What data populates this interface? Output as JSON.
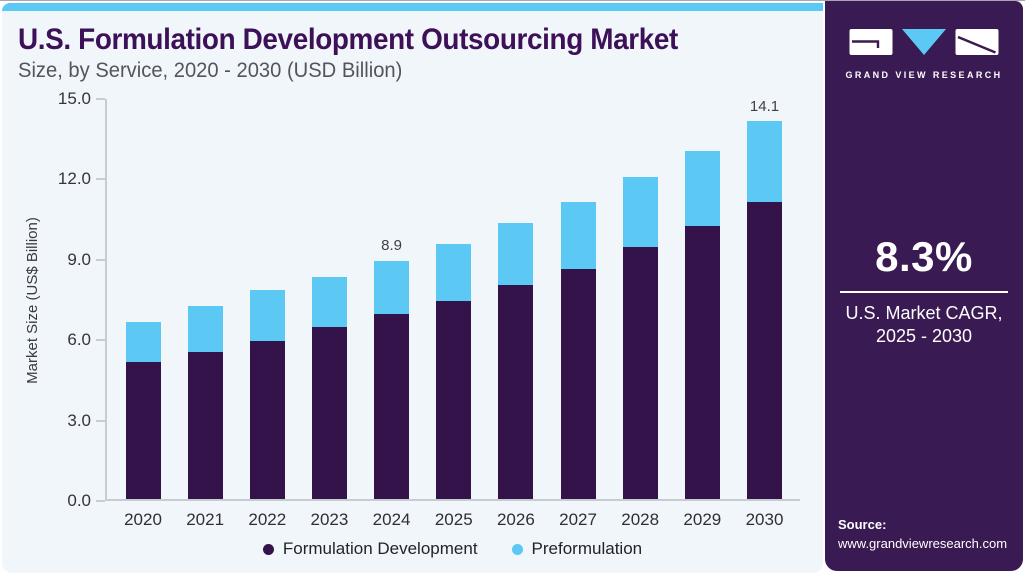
{
  "page": {
    "accent_color": "#5bc9f4",
    "card_bg": "#f1f6fa"
  },
  "header": {
    "title": "U.S. Formulation Development Outsourcing Market",
    "subtitle": "Size, by Service, 2020 - 2030 (USD Billion)",
    "title_color": "#3d1158"
  },
  "chart_data": {
    "type": "bar",
    "stacked": true,
    "title": "U.S. Formulation Development Outsourcing Market Size, by Service, 2020 - 2030 (USD Billion)",
    "categories": [
      "2020",
      "2021",
      "2022",
      "2023",
      "2024",
      "2025",
      "2026",
      "2027",
      "2028",
      "2029",
      "2030"
    ],
    "series": [
      {
        "name": "Formulation Development",
        "color": "#331349",
        "values": [
          5.1,
          5.5,
          5.9,
          6.4,
          6.9,
          7.4,
          8.0,
          8.6,
          9.4,
          10.2,
          11.1
        ]
      },
      {
        "name": "Preformulation",
        "color": "#5bc9f4",
        "values": [
          1.5,
          1.7,
          1.9,
          1.9,
          2.0,
          2.1,
          2.3,
          2.5,
          2.6,
          2.8,
          3.0
        ]
      }
    ],
    "totals": [
      6.6,
      7.2,
      7.8,
      8.3,
      8.9,
      9.5,
      10.3,
      11.1,
      12.0,
      13.0,
      14.1
    ],
    "value_labels": [
      {
        "category": "2024",
        "label": "8.9"
      },
      {
        "category": "2030",
        "label": "14.1"
      }
    ],
    "xlabel": "",
    "ylabel": "Market Size (US$ Billion)",
    "ylim": [
      0,
      15
    ],
    "yticks": [
      "15.0",
      "12.0",
      "9.0",
      "6.0",
      "3.0",
      "0.0"
    ],
    "grid": false,
    "legend_position": "bottom-center"
  },
  "sidebar": {
    "bg_color": "#3a1a52",
    "logo_text": "GRAND VIEW RESEARCH",
    "cagr_value": "8.3%",
    "cagr_label_line1": "U.S. Market CAGR,",
    "cagr_label_line2": "2025 - 2030",
    "source_label": "Source:",
    "source_url": "www.grandviewresearch.com"
  }
}
